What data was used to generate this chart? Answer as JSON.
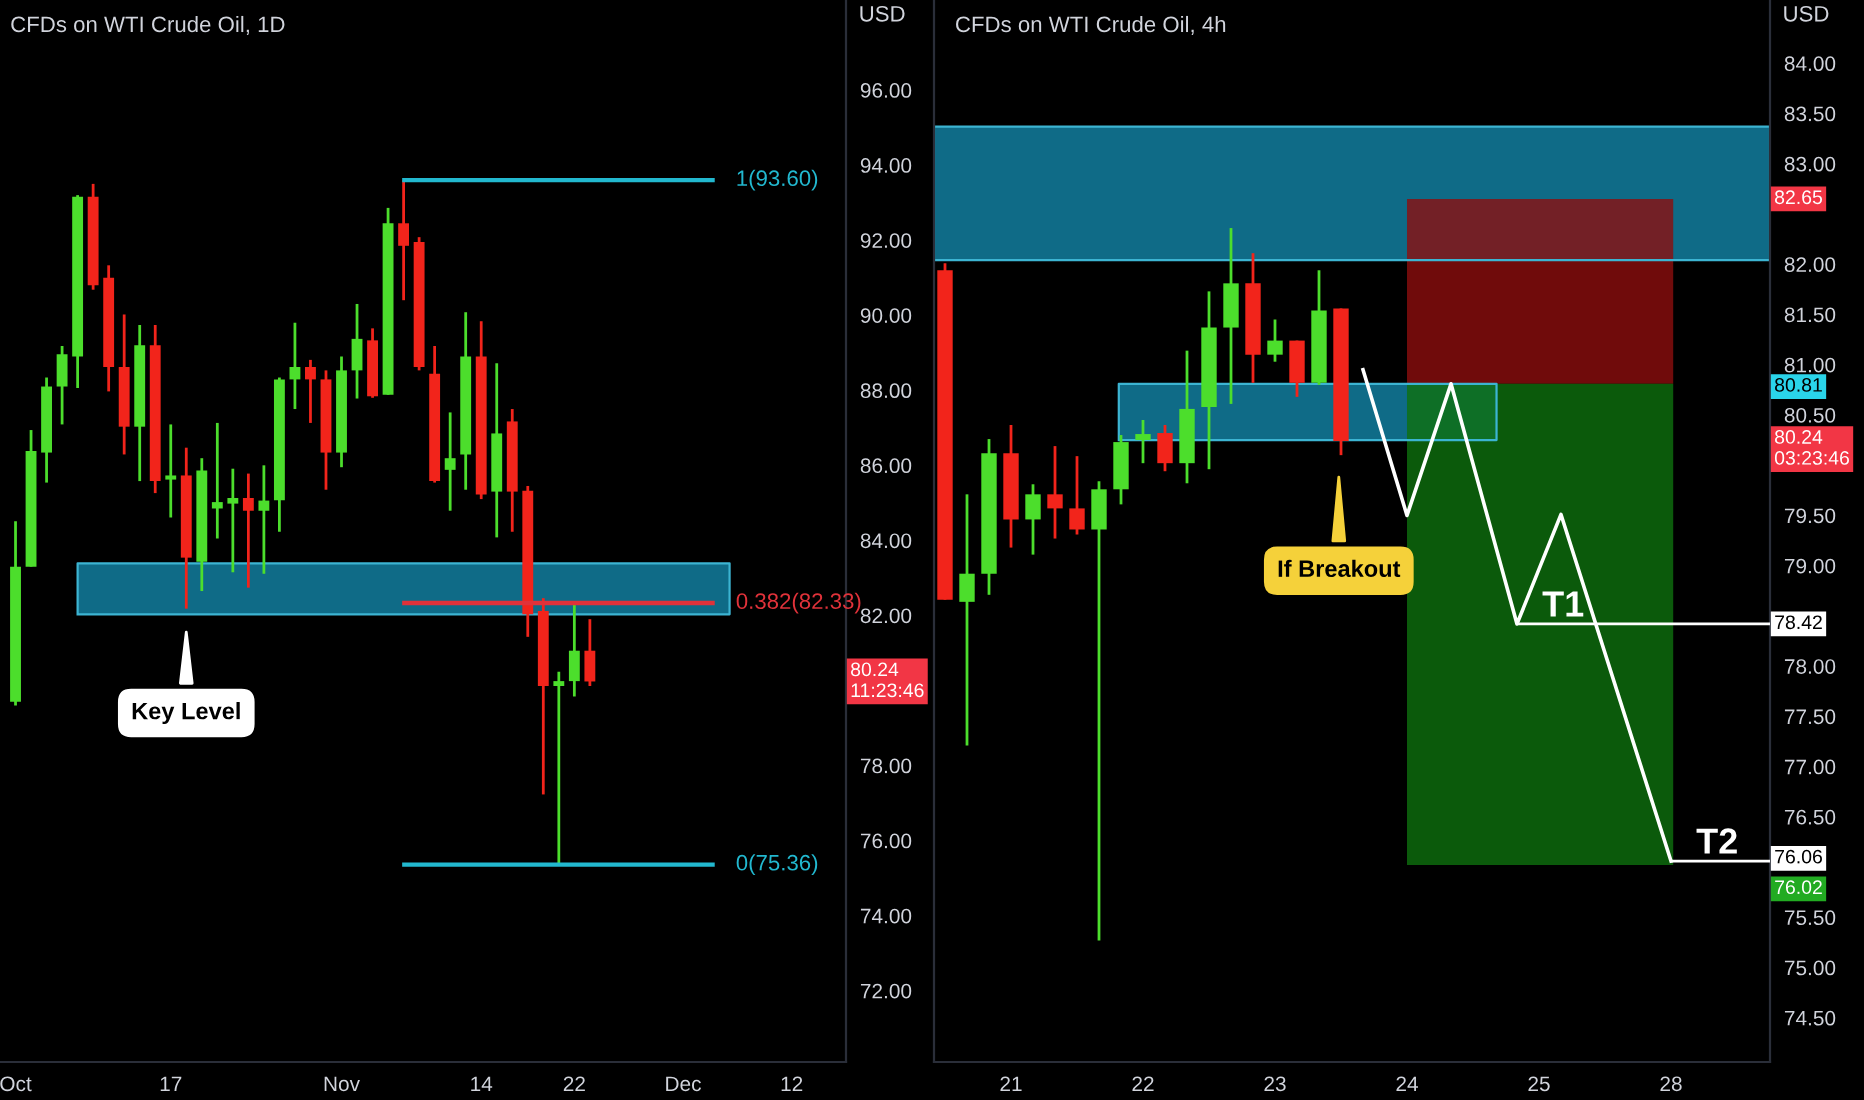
{
  "chart_data": [
    {
      "type": "candlestick",
      "title": "CFDs on WTI Crude Oil, 1D",
      "ylabel": "USD",
      "categories": [
        "Oct",
        null,
        null,
        null,
        null,
        null,
        null,
        null,
        null,
        null,
        "17",
        null,
        null,
        null,
        null,
        null,
        null,
        null,
        null,
        null,
        null,
        "Nov",
        null,
        null,
        null,
        null,
        null,
        null,
        null,
        null,
        "14",
        null,
        null,
        null,
        null,
        null,
        "22",
        null,
        null,
        null,
        null,
        null,
        null,
        "Dec",
        null,
        null,
        null,
        null,
        null,
        null,
        "12",
        null,
        null,
        null
      ],
      "ohlc": [
        [
          79.7,
          84.51,
          79.6,
          83.3
        ],
        [
          83.3,
          86.94,
          83.3,
          86.38
        ],
        [
          86.34,
          88.34,
          85.54,
          88.1
        ],
        [
          88.1,
          89.18,
          87.09,
          88.96
        ],
        [
          88.9,
          93.2,
          88.06,
          93.16
        ],
        [
          93.16,
          93.5,
          90.68,
          90.8
        ],
        [
          91.0,
          91.33,
          87.97,
          88.62
        ],
        [
          88.62,
          90.02,
          86.29,
          87.03
        ],
        [
          87.03,
          89.74,
          85.58,
          89.2
        ],
        [
          89.2,
          89.74,
          85.26,
          85.58
        ],
        [
          85.62,
          87.09,
          84.61,
          85.73
        ],
        [
          85.73,
          86.47,
          82.18,
          83.54
        ],
        [
          83.43,
          86.19,
          82.65,
          85.86
        ],
        [
          84.85,
          87.13,
          84.05,
          85.02
        ],
        [
          84.98,
          85.91,
          83.15,
          85.13
        ],
        [
          85.13,
          85.78,
          82.74,
          84.79
        ],
        [
          84.79,
          86.0,
          83.11,
          85.06
        ],
        [
          85.07,
          88.34,
          84.23,
          88.29
        ],
        [
          88.29,
          89.8,
          87.5,
          88.62
        ],
        [
          88.62,
          88.81,
          87.13,
          88.29
        ],
        [
          88.29,
          88.53,
          85.35,
          86.34
        ],
        [
          86.34,
          88.9,
          85.95,
          88.53
        ],
        [
          88.53,
          90.3,
          87.78,
          89.37
        ],
        [
          89.33,
          89.65,
          87.8,
          87.84
        ],
        [
          87.88,
          92.86,
          87.88,
          92.45
        ],
        [
          92.45,
          93.6,
          90.4,
          91.85
        ],
        [
          91.95,
          92.08,
          88.53,
          88.62
        ],
        [
          88.44,
          89.18,
          85.54,
          85.58
        ],
        [
          85.88,
          87.41,
          84.79,
          86.19
        ],
        [
          86.29,
          90.08,
          85.35,
          88.9
        ],
        [
          88.9,
          89.84,
          85.1,
          85.22
        ],
        [
          85.3,
          88.72,
          84.08,
          86.85
        ],
        [
          87.17,
          87.5,
          84.23,
          85.3
        ],
        [
          85.32,
          85.45,
          81.43,
          82.03
        ],
        [
          82.12,
          82.46,
          77.23,
          80.12
        ],
        [
          80.12,
          80.5,
          75.36,
          80.25
        ],
        [
          80.25,
          82.36,
          79.84,
          81.06
        ],
        [
          81.06,
          81.9,
          80.12,
          80.24
        ],
        null,
        null,
        null,
        null,
        null,
        null,
        null,
        null,
        null,
        null,
        null,
        null,
        null,
        null,
        null,
        null
      ],
      "colors": [
        "#4cde2c",
        "#4cde2c",
        "#4cde2c",
        "#4cde2c",
        "#4cde2c",
        "#f2241b",
        "#f2241b",
        "#f2241b",
        "#4cde2c",
        "#f2241b",
        "#4cde2c",
        "#f2241b",
        "#4cde2c",
        "#4cde2c",
        "#4cde2c",
        "#f2241b",
        "#4cde2c",
        "#4cde2c",
        "#4cde2c",
        "#f2241b",
        "#f2241b",
        "#4cde2c",
        "#4cde2c",
        "#f2241b",
        "#4cde2c",
        "#f2241b",
        "#f2241b",
        "#f2241b",
        "#4cde2c",
        "#4cde2c",
        "#f2241b",
        "#4cde2c",
        "#f2241b",
        "#f2241b",
        "#f2241b",
        "#4cde2c",
        "#4cde2c",
        "#f2241b",
        null,
        null,
        null,
        null,
        null,
        null,
        null,
        null,
        null,
        null,
        null,
        null,
        null,
        null,
        null,
        null
      ],
      "ylim": [
        70.1,
        98.4
      ],
      "yticks": [
        {
          "value": 72,
          "label": "72.00"
        },
        {
          "value": 74,
          "label": "74.00"
        },
        {
          "value": 76,
          "label": "76.00"
        },
        {
          "value": 78,
          "label": "78.00"
        },
        {
          "value": 82,
          "label": "82.00"
        },
        {
          "value": 84,
          "label": "84.00"
        },
        {
          "value": 86,
          "label": "86.00"
        },
        {
          "value": 88,
          "label": "88.00"
        },
        {
          "value": 90,
          "label": "90.00"
        },
        {
          "value": 92,
          "label": "92.00"
        },
        {
          "value": 94,
          "label": "94.00"
        },
        {
          "value": 96,
          "label": "96.00"
        }
      ],
      "bands": [
        {
          "axis": "y",
          "from": 82.03,
          "to": 83.39,
          "color": "#0f6b87"
        }
      ],
      "ref_lines": [
        {
          "axis": "y",
          "value": 93.6,
          "label": "1(93.60)",
          "color": "#22b8cf"
        },
        {
          "axis": "y",
          "value": 82.33,
          "label": "0.382(82.33)",
          "color": "#e0323a"
        },
        {
          "axis": "y",
          "value": 75.36,
          "label": "0(75.36)",
          "color": "#22b8cf"
        }
      ],
      "annotations": [
        "Key Level",
        "80.24\n11:23:46"
      ]
    },
    {
      "type": "candlestick",
      "title": "CFDs on WTI Crude Oil, 4h",
      "ylabel": "USD",
      "categories": [
        null,
        null,
        null,
        "21",
        null,
        null,
        null,
        null,
        null,
        "22",
        null,
        null,
        null,
        null,
        null,
        "23",
        null,
        null,
        null,
        null,
        null,
        "24",
        null,
        null,
        null,
        null,
        null,
        "25",
        null,
        null,
        null,
        null,
        null,
        "28",
        null,
        null,
        null,
        null
      ],
      "ohlc": [
        [
          81.94,
          82.01,
          78.66,
          78.66
        ],
        [
          78.64,
          79.71,
          77.21,
          78.92
        ],
        [
          78.92,
          80.26,
          78.71,
          80.12
        ],
        [
          80.12,
          80.4,
          79.18,
          79.46
        ],
        [
          79.46,
          79.81,
          79.11,
          79.71
        ],
        [
          79.71,
          80.19,
          79.27,
          79.57
        ],
        [
          79.57,
          80.09,
          79.31,
          79.36
        ],
        [
          79.36,
          79.84,
          75.27,
          79.76
        ],
        [
          79.76,
          80.3,
          79.61,
          80.23
        ],
        [
          80.25,
          80.45,
          80.02,
          80.31
        ],
        [
          80.32,
          80.4,
          79.94,
          80.02
        ],
        [
          80.02,
          81.14,
          79.82,
          80.56
        ],
        [
          80.58,
          81.73,
          79.96,
          81.37
        ],
        [
          81.37,
          82.36,
          80.61,
          81.81
        ],
        [
          81.81,
          82.11,
          80.82,
          81.1
        ],
        [
          81.1,
          81.45,
          81.03,
          81.24
        ],
        [
          81.24,
          81.24,
          80.68,
          80.82
        ],
        [
          80.82,
          81.94,
          80.8,
          81.54
        ],
        [
          81.56,
          81.56,
          80.1,
          80.24
        ],
        null,
        null,
        null,
        null,
        null,
        null,
        null,
        null,
        null,
        null,
        null,
        null,
        null,
        null,
        null,
        null,
        null,
        null,
        null
      ],
      "colors": [
        "#f2241b",
        "#4cde2c",
        "#4cde2c",
        "#f2241b",
        "#4cde2c",
        "#f2241b",
        "#f2241b",
        "#4cde2c",
        "#4cde2c",
        "#4cde2c",
        "#f2241b",
        "#4cde2c",
        "#4cde2c",
        "#4cde2c",
        "#f2241b",
        "#4cde2c",
        "#f2241b",
        "#4cde2c",
        "#f2241b",
        null,
        null,
        null,
        null,
        null,
        null,
        null,
        null,
        null,
        null,
        null,
        null,
        null,
        null,
        null,
        null,
        null,
        null,
        null
      ],
      "series": [
        {
          "type": "line",
          "color": "#ffffff",
          "values": [
            null,
            null,
            null,
            null,
            null,
            null,
            null,
            null,
            null,
            null,
            null,
            null,
            null,
            null,
            null,
            null,
            null,
            null,
            null,
            80.95,
            null,
            79.5,
            null,
            80.81,
            null,
            null,
            78.42,
            null,
            79.51,
            null,
            null,
            null,
            null,
            76.06,
            null,
            null,
            null,
            null
          ]
        }
      ],
      "ylim": [
        74.06,
        84.63
      ],
      "yticks": [
        {
          "value": 74.5,
          "label": "74.50"
        },
        {
          "value": 75,
          "label": "75.00"
        },
        {
          "value": 75.5,
          "label": "75.50"
        },
        {
          "value": 76.5,
          "label": "76.50"
        },
        {
          "value": 77,
          "label": "77.00"
        },
        {
          "value": 77.5,
          "label": "77.50"
        },
        {
          "value": 78,
          "label": "78.00"
        },
        {
          "value": 79,
          "label": "79.00"
        },
        {
          "value": 79.5,
          "label": "79.50"
        },
        {
          "value": 80.5,
          "label": "80.50"
        },
        {
          "value": 81,
          "label": "81.00"
        },
        {
          "value": 81.5,
          "label": "81.50"
        },
        {
          "value": 82,
          "label": "82.00"
        },
        {
          "value": 83,
          "label": "83.00"
        },
        {
          "value": 83.5,
          "label": "83.50"
        },
        {
          "value": 84,
          "label": "84.00"
        }
      ],
      "bands": [
        {
          "axis": "y",
          "from": 82.04,
          "to": 83.37,
          "color": "#0f6b87"
        },
        {
          "axis": "y",
          "from": 80.25,
          "to": 80.81,
          "color": "#0f6b87"
        },
        {
          "axis": "y",
          "from": 80.81,
          "to": 82.65,
          "color": "#8c0e0e"
        },
        {
          "axis": "y",
          "from": 76.02,
          "to": 80.81,
          "color": "#0e700e"
        }
      ],
      "ref_lines": [
        {
          "axis": "y",
          "value": 78.42,
          "label": "T1",
          "color": "#ffffff"
        },
        {
          "axis": "y",
          "value": 76.06,
          "label": "T2",
          "color": "#ffffff"
        }
      ],
      "annotations": [
        "If Breakout",
        "82.65",
        "80.81",
        "80.24\n03:23:46",
        "78.42",
        "76.06",
        "76.02"
      ]
    }
  ]
}
